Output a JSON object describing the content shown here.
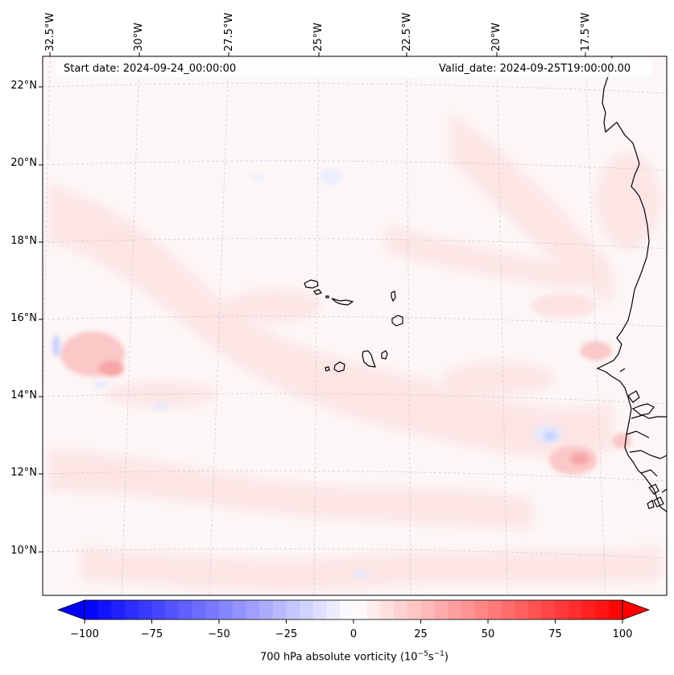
{
  "map": {
    "start_date": "Start date: 2024-09-24_00:00:00",
    "valid_date": "Valid_date: 2024-09-25T19:00:00.00",
    "lon_labels": [
      "32.5°W",
      "30°W",
      "27.5°W",
      "25°W",
      "22.5°W",
      "20°W",
      "17.5°W"
    ],
    "lat_labels": [
      "22°N",
      "20°N",
      "18°N",
      "16°N",
      "14°N",
      "12°N",
      "10°N"
    ],
    "field_palette": {
      "neutral": "#fdf6f6",
      "light_red": "#fde4e4",
      "mid_red": "#fbc8c8",
      "strong_red": "#f7a6a6",
      "light_blue": "#e4e8fd",
      "mid_blue": "#c9d1fb"
    }
  },
  "colorbar": {
    "title": "700 hPa absolute vorticity (10",
    "title_exp": "−5",
    "title_unit": "s",
    "title_unit_exp": "−1",
    "title_close": ")",
    "min": -100,
    "max": 100,
    "ticks": [
      "−100",
      "−75",
      "−50",
      "−25",
      "0",
      "25",
      "50",
      "75",
      "100"
    ],
    "low_color": "#0000ff",
    "mid_color": "#ffffff",
    "high_color": "#ff0000"
  }
}
